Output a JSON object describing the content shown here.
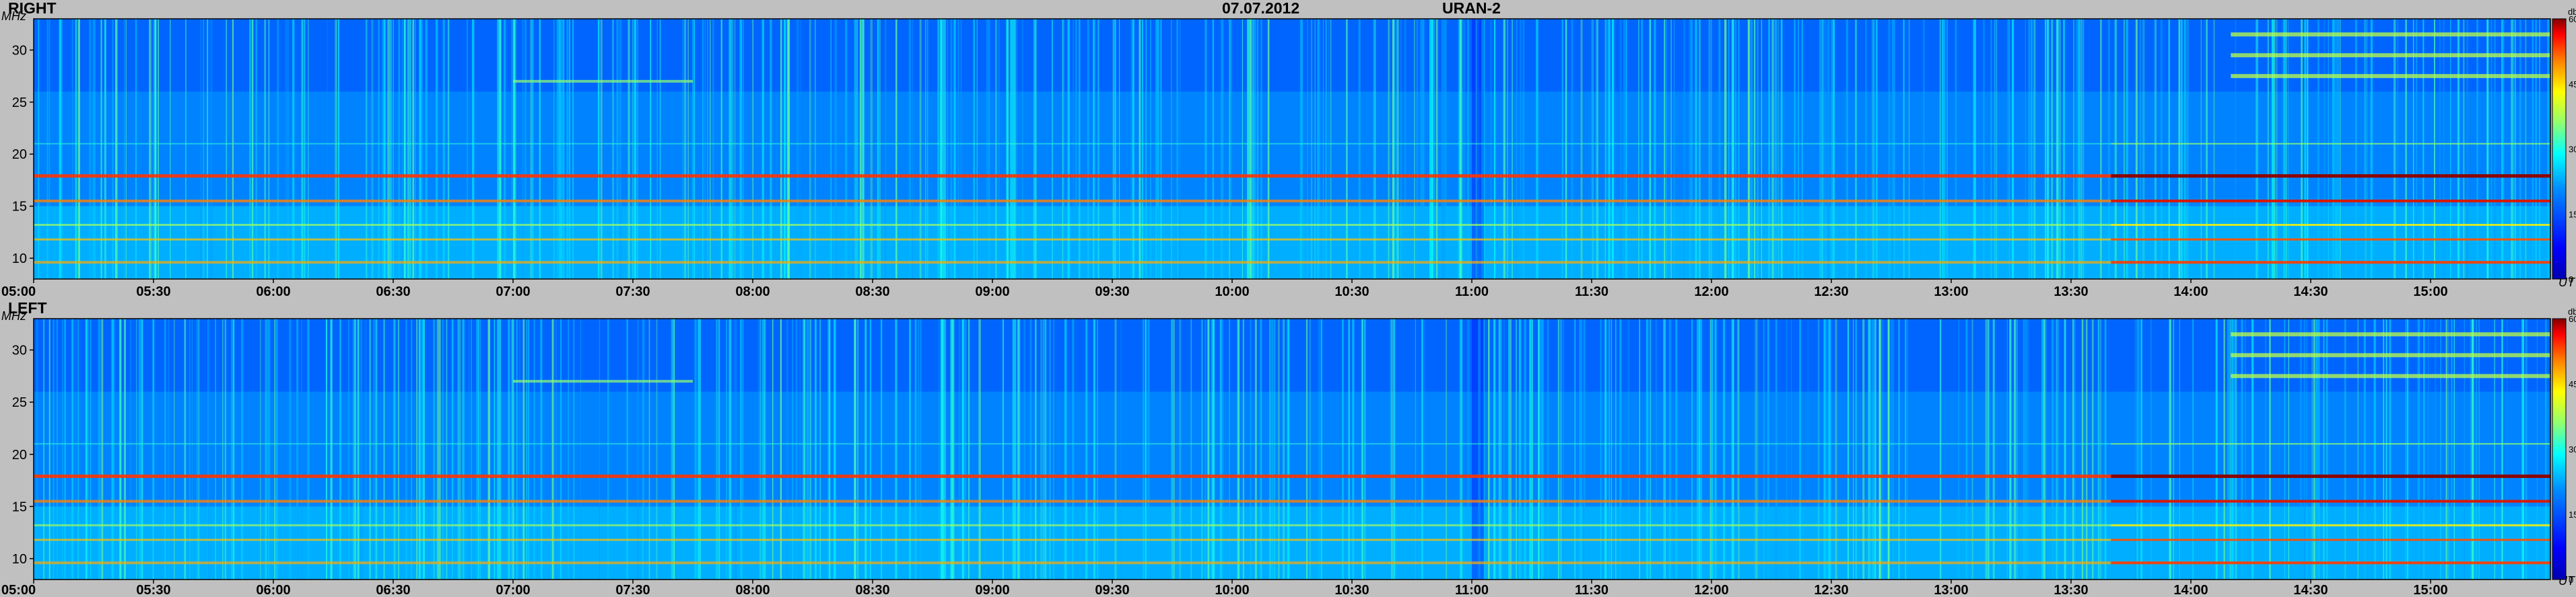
{
  "chart_data": {
    "type": "heatmap",
    "date": "07.07.2012",
    "instrument": "URAN-2",
    "freq_unit": "MHz",
    "time_unit": "UT",
    "colorbar_unit": "db",
    "colorbar_ticks": [
      "60",
      "45",
      "30",
      "15",
      "0"
    ],
    "colorbar_range": [
      0,
      60
    ],
    "colormap": [
      "#00008f",
      "#0000ff",
      "#0080ff",
      "#00ffff",
      "#80ff80",
      "#ffff00",
      "#ff8000",
      "#ff0000",
      "#800000"
    ],
    "x_ticks": [
      "05:00",
      "05:30",
      "06:00",
      "06:30",
      "07:00",
      "07:30",
      "08:00",
      "08:30",
      "09:00",
      "09:30",
      "10:00",
      "10:30",
      "11:00",
      "11:30",
      "12:00",
      "12:30",
      "13:00",
      "13:30",
      "14:00",
      "14:30",
      "15:00"
    ],
    "xlim": [
      "05:00",
      "15:30"
    ],
    "y_ticks": [
      "30",
      "25",
      "20",
      "15",
      "10"
    ],
    "ylim": [
      8,
      33
    ],
    "panels": [
      {
        "label": "RIGHT",
        "horizontal_bands_MHz": [
          9.6,
          11.8,
          13.2,
          15.5,
          17.9,
          21.0
        ],
        "late_bursts_MHz": [
          27.5,
          29.5,
          31.5
        ]
      },
      {
        "label": "LEFT",
        "horizontal_bands_MHz": [
          9.6,
          11.8,
          13.2,
          15.5,
          17.9,
          21.0
        ],
        "late_bursts_MHz": [
          27.5,
          29.5,
          31.5
        ]
      }
    ]
  }
}
